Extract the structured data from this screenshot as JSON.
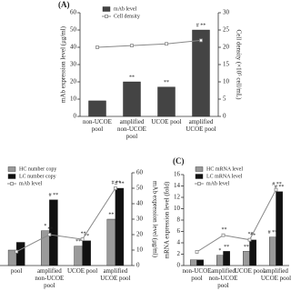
{
  "chart_data": [
    {
      "type": "bar",
      "title": "(A)",
      "y_label": "mAb expression level (μg/ml)",
      "y2_label": "Cell density (×10⁵ cell/mL)",
      "categories": [
        "non-UCOE pool",
        "amplified non-UCOE pool",
        "UCOE pool",
        "amplified UCOE pool"
      ],
      "series": [
        {
          "name": "mAb level",
          "color": "#444444",
          "values": [
            9,
            20,
            17,
            50
          ],
          "annotations": [
            null,
            "**",
            "**",
            "# **"
          ]
        },
        {
          "name": "Cell density",
          "type": "line",
          "axis": "y2",
          "color": "#888888",
          "values": [
            20,
            20.5,
            21,
            22
          ]
        }
      ],
      "ylim": [
        0,
        60
      ],
      "yticks": [
        0,
        10,
        20,
        30,
        40,
        50,
        60
      ],
      "y2lim": [
        0,
        30
      ],
      "y2ticks": [
        0,
        5,
        10,
        15,
        20,
        25,
        30
      ]
    },
    {
      "type": "bar",
      "y2_label": "mAb expression level (μg/ml)",
      "categories": [
        "pool",
        "amplified non-UCOE pool",
        "UCOE pool",
        "amplified UCOE pool"
      ],
      "series": [
        {
          "name": "HC number copy",
          "color": "#9a9a9a",
          "values": [
            2,
            4.5,
            2.5,
            6
          ],
          "annotations": [
            null,
            "*",
            "**",
            "**"
          ]
        },
        {
          "name": "LC number copy",
          "color": "#111111",
          "values": [
            3,
            8.5,
            3.2,
            10
          ],
          "annotations": [
            null,
            "# **",
            "**",
            "# **"
          ]
        },
        {
          "name": "mAb level",
          "type": "line",
          "axis": "y2",
          "color": "#888888",
          "values": [
            9,
            20,
            17,
            50
          ],
          "annotations": [
            null,
            "**",
            "**",
            "# **"
          ]
        }
      ],
      "ylim": [
        0,
        12
      ],
      "y2lim": [
        0,
        60
      ],
      "y2ticks": [
        0,
        10,
        20,
        30,
        40,
        50,
        60
      ]
    },
    {
      "type": "bar",
      "title": "(C)",
      "y_label": "mRNA expression level (fold)",
      "categories": [
        "non-UCOE pool",
        "amplified non-UCOE pool",
        "UCOE pool",
        "amplified UCOE pool"
      ],
      "series": [
        {
          "name": "HC mRNA level",
          "color": "#9a9a9a",
          "values": [
            1,
            1.8,
            2.5,
            5
          ],
          "annotations": [
            null,
            "*",
            "**",
            "# **"
          ]
        },
        {
          "name": "LC mRNA level",
          "color": "#111111",
          "values": [
            1,
            2.5,
            4.5,
            13
          ],
          "annotations": [
            null,
            "**",
            "**",
            "# **"
          ]
        },
        {
          "name": "mAb level",
          "type": "line",
          "axis": "y2",
          "color": "#888888",
          "values": [
            9,
            20,
            17,
            50
          ],
          "annotations": [
            null,
            "**",
            "**",
            "# **"
          ]
        }
      ],
      "ylim": [
        0,
        16
      ],
      "yticks": [
        0,
        2,
        4,
        6,
        8,
        10,
        12,
        14,
        16
      ],
      "y2lim": [
        0,
        60
      ]
    }
  ]
}
